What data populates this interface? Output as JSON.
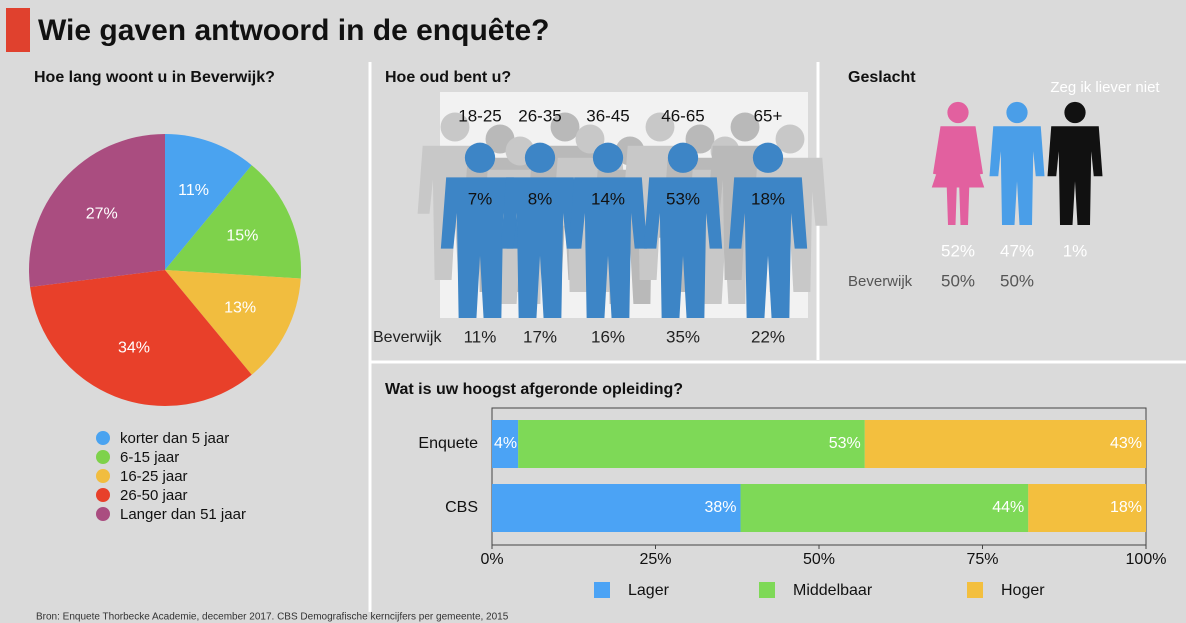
{
  "title": "Wie gaven antwoord in de enquête?",
  "source": "Bron: Enquete Thorbecke Academie, december 2017. CBS Demografische kerncijfers per gemeente, 2015",
  "chart_data": [
    {
      "type": "pie",
      "title": "Hoe lang woont u in Beverwijk?",
      "categories": [
        "korter dan 5 jaar",
        "6-15 jaar",
        "16-25 jaar",
        "26-50 jaar",
        "Langer dan 51 jaar"
      ],
      "values": [
        11,
        15,
        13,
        34,
        27
      ],
      "value_labels": [
        "11%",
        "15%",
        "13%",
        "34%",
        "27%"
      ],
      "colors": [
        "#4aa3f0",
        "#7ed24b",
        "#f1bd3f",
        "#e8402a",
        "#aa4d80"
      ]
    },
    {
      "type": "pictogram",
      "title": "Hoe oud bent u?",
      "categories": [
        "18-25",
        "26-35",
        "36-45",
        "46-65",
        "65+"
      ],
      "colors": [
        "#3d85c6",
        "#3d85c6",
        "#3d85c6",
        "#3d85c6",
        "#3d85c6"
      ],
      "series": [
        {
          "values": [
            7,
            8,
            14,
            53,
            18
          ],
          "value_labels": [
            "7%",
            "8%",
            "14%",
            "53%",
            "18%"
          ]
        },
        {
          "name": "Beverwijk",
          "values": [
            11,
            17,
            16,
            35,
            22
          ],
          "value_labels": [
            "11%",
            "17%",
            "16%",
            "35%",
            "22%"
          ]
        }
      ]
    },
    {
      "type": "pictogram",
      "title": "Geslacht",
      "categories": [
        null,
        null,
        "Zeg ik liever niet"
      ],
      "colors": [
        "#e2609f",
        "#4a9ee8",
        "#111111"
      ],
      "series": [
        {
          "values": [
            52,
            47,
            1
          ],
          "value_labels": [
            "52%",
            "47%",
            "1%"
          ]
        },
        {
          "name": "Beverwijk",
          "values": [
            50,
            50,
            null
          ],
          "value_labels": [
            "50%",
            "50%",
            null
          ]
        }
      ]
    },
    {
      "type": "bar",
      "title": "Wat is uw hoogst afgeronde opleiding?",
      "orientation": "horizontal",
      "stacked": true,
      "categories": [
        "Enquete",
        "CBS"
      ],
      "series": [
        {
          "name": "Lager",
          "color": "#4ba3f5",
          "values": [
            4,
            38
          ],
          "value_labels": [
            "4%",
            "38%"
          ]
        },
        {
          "name": "Middelbaar",
          "color": "#7ed957",
          "values": [
            53,
            44
          ],
          "value_labels": [
            "53%",
            "44%"
          ]
        },
        {
          "name": "Hoger",
          "color": "#f3bf3e",
          "values": [
            43,
            18
          ],
          "value_labels": [
            "43%",
            "18%"
          ]
        }
      ],
      "xlim": [
        0,
        100
      ],
      "xticks": [
        {
          "value": 0,
          "label": "0%"
        },
        {
          "value": 25,
          "label": "25%"
        },
        {
          "value": 50,
          "label": "50%"
        },
        {
          "value": 75,
          "label": "75%"
        },
        {
          "value": 100,
          "label": "100%"
        }
      ]
    }
  ]
}
